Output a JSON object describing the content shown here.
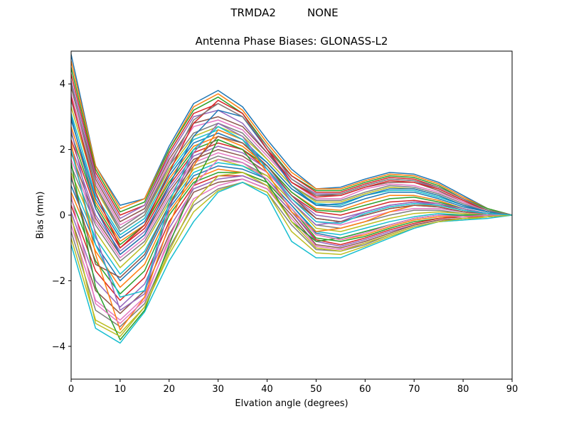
{
  "header": {
    "station": "TRMDA2",
    "radome": "NONE"
  },
  "chart_data": {
    "type": "line",
    "title": "Antenna Phase Biases: GLONASS-L2",
    "xlabel": "Elvation angle (degrees)",
    "ylabel": "Bias (mm)",
    "xlim": [
      0,
      90
    ],
    "ylim": [
      -5,
      5
    ],
    "xticks": [
      0,
      10,
      20,
      30,
      40,
      50,
      60,
      70,
      80,
      90
    ],
    "yticks": [
      -4,
      -2,
      0,
      2,
      4
    ],
    "x": [
      0,
      5,
      10,
      15,
      20,
      25,
      30,
      35,
      40,
      45,
      50,
      55,
      60,
      65,
      70,
      75,
      80,
      85,
      90
    ],
    "grid": false,
    "legend": "none",
    "colors": [
      "#1f77b4",
      "#ff7f0e",
      "#2ca02c",
      "#d62728",
      "#9467bd",
      "#8c564b",
      "#e377c2",
      "#7f7f7f",
      "#bcbd22",
      "#17becf"
    ],
    "series": [
      {
        "values": [
          4.9,
          1.5,
          0.3,
          0.5,
          2.1,
          3.4,
          3.8,
          3.3,
          2.3,
          1.4,
          0.8,
          0.85,
          1.1,
          1.3,
          1.25,
          1.0,
          0.6,
          0.2,
          0
        ]
      },
      {
        "values": [
          4.7,
          1.5,
          0.2,
          0.5,
          2.0,
          3.3,
          3.7,
          3.2,
          2.2,
          1.3,
          0.8,
          0.8,
          1.05,
          1.25,
          1.2,
          0.95,
          0.55,
          0.2,
          0
        ]
      },
      {
        "values": [
          4.5,
          1.4,
          0.1,
          0.4,
          2.0,
          3.2,
          3.6,
          3.1,
          2.1,
          1.2,
          0.75,
          0.75,
          1.0,
          1.2,
          1.15,
          0.9,
          0.5,
          0.2,
          0
        ]
      },
      {
        "values": [
          4.3,
          1.3,
          0.0,
          0.3,
          1.9,
          3.1,
          3.4,
          3.0,
          2.0,
          1.2,
          0.7,
          0.7,
          0.95,
          1.15,
          1.1,
          0.85,
          0.5,
          0.15,
          0
        ]
      },
      {
        "values": [
          4.1,
          1.2,
          -0.1,
          0.3,
          1.8,
          3.0,
          3.2,
          2.8,
          1.9,
          1.1,
          0.65,
          0.65,
          0.9,
          1.1,
          1.05,
          0.8,
          0.45,
          0.15,
          0
        ]
      },
      {
        "values": [
          3.9,
          1.1,
          -0.2,
          0.2,
          1.7,
          2.8,
          3.0,
          2.7,
          1.9,
          1.0,
          0.6,
          0.6,
          0.85,
          1.0,
          1.0,
          0.75,
          0.4,
          0.15,
          0
        ]
      },
      {
        "values": [
          3.7,
          1.0,
          -0.3,
          0.1,
          1.6,
          2.7,
          2.9,
          2.6,
          1.8,
          1.0,
          0.5,
          0.5,
          0.8,
          0.95,
          0.9,
          0.7,
          0.4,
          0.1,
          0
        ]
      },
      {
        "values": [
          3.5,
          0.9,
          -0.4,
          0.1,
          1.5,
          2.5,
          2.8,
          2.5,
          1.7,
          0.9,
          0.45,
          0.45,
          0.7,
          0.9,
          0.85,
          0.65,
          0.35,
          0.1,
          0
        ]
      },
      {
        "values": [
          3.3,
          0.8,
          -0.5,
          0.0,
          1.4,
          2.4,
          2.7,
          2.4,
          1.7,
          0.9,
          0.4,
          0.4,
          0.65,
          0.85,
          0.8,
          0.6,
          0.3,
          0.1,
          0
        ]
      },
      {
        "values": [
          3.1,
          0.6,
          -0.6,
          -0.1,
          1.3,
          2.3,
          2.6,
          2.3,
          1.6,
          0.8,
          0.35,
          0.3,
          0.6,
          0.75,
          0.75,
          0.55,
          0.3,
          0.1,
          0
        ]
      },
      {
        "values": [
          2.9,
          0.5,
          -0.7,
          -0.2,
          1.2,
          2.2,
          2.5,
          2.2,
          1.6,
          0.8,
          0.3,
          0.25,
          0.5,
          0.7,
          0.7,
          0.5,
          0.25,
          0.1,
          0
        ]
      },
      {
        "values": [
          2.7,
          0.4,
          -0.8,
          -0.3,
          1.1,
          2.1,
          2.4,
          2.1,
          1.5,
          0.7,
          0.2,
          0.15,
          0.4,
          0.6,
          0.6,
          0.45,
          0.2,
          0.05,
          0
        ]
      },
      {
        "values": [
          2.5,
          0.3,
          -0.9,
          -0.3,
          1.0,
          2.0,
          2.3,
          2.0,
          1.5,
          0.7,
          0.15,
          0.1,
          0.3,
          0.5,
          0.55,
          0.4,
          0.2,
          0.05,
          0
        ]
      },
      {
        "values": [
          2.3,
          0.2,
          -1.0,
          -0.4,
          0.9,
          1.9,
          2.2,
          2.0,
          1.4,
          0.6,
          0.1,
          0.0,
          0.2,
          0.4,
          0.45,
          0.35,
          0.15,
          0.05,
          0
        ]
      },
      {
        "values": [
          2.1,
          0.0,
          -1.1,
          -0.5,
          0.8,
          1.8,
          2.1,
          1.9,
          1.4,
          0.6,
          0.0,
          -0.1,
          0.1,
          0.3,
          0.4,
          0.3,
          0.15,
          0.05,
          0
        ]
      },
      {
        "values": [
          1.9,
          -0.1,
          -1.2,
          -0.6,
          0.7,
          1.7,
          2.0,
          1.8,
          1.3,
          0.5,
          -0.1,
          -0.2,
          0.0,
          0.2,
          0.3,
          0.25,
          0.1,
          0.0,
          0
        ]
      },
      {
        "values": [
          1.7,
          -0.2,
          -1.3,
          -0.7,
          0.6,
          1.6,
          1.9,
          1.7,
          1.3,
          0.5,
          -0.2,
          -0.3,
          -0.1,
          0.1,
          0.2,
          0.2,
          0.1,
          0.0,
          0
        ]
      },
      {
        "values": [
          1.5,
          -0.3,
          -1.4,
          -0.8,
          0.5,
          1.5,
          1.8,
          1.6,
          1.2,
          0.4,
          -0.3,
          -0.4,
          -0.2,
          0.0,
          0.15,
          0.15,
          0.05,
          0.0,
          0
        ]
      },
      {
        "values": [
          1.3,
          -0.5,
          -1.6,
          -0.9,
          0.4,
          1.4,
          1.7,
          1.5,
          1.2,
          0.4,
          -0.4,
          -0.5,
          -0.3,
          -0.1,
          0.05,
          0.1,
          0.05,
          0.0,
          0
        ]
      },
      {
        "values": [
          1.1,
          -0.7,
          -1.8,
          -1.1,
          0.3,
          1.3,
          1.6,
          1.5,
          1.1,
          0.3,
          -0.5,
          -0.6,
          -0.4,
          -0.2,
          -0.05,
          0.05,
          0.0,
          0.0,
          0
        ]
      },
      {
        "values": [
          0.9,
          -0.9,
          -2.0,
          -1.3,
          0.2,
          1.2,
          1.5,
          1.4,
          1.1,
          0.3,
          -0.55,
          -0.7,
          -0.5,
          -0.3,
          -0.1,
          0.0,
          0.0,
          0.0,
          0
        ]
      },
      {
        "values": [
          0.7,
          -1.1,
          -2.2,
          -1.5,
          0.1,
          1.1,
          1.4,
          1.3,
          1.0,
          0.2,
          -0.6,
          -0.75,
          -0.6,
          -0.35,
          -0.15,
          -0.05,
          -0.05,
          0.0,
          0
        ]
      },
      {
        "values": [
          0.5,
          -1.4,
          -2.4,
          -1.7,
          0.0,
          1.0,
          1.3,
          1.3,
          1.0,
          0.2,
          -0.7,
          -0.8,
          -0.65,
          -0.4,
          -0.2,
          -0.1,
          -0.05,
          -0.05,
          0
        ]
      },
      {
        "values": [
          0.3,
          -1.7,
          -2.6,
          -1.9,
          -0.2,
          0.9,
          1.2,
          1.2,
          0.9,
          0.1,
          -0.75,
          -0.9,
          -0.7,
          -0.45,
          -0.25,
          -0.1,
          -0.05,
          -0.05,
          0
        ]
      },
      {
        "values": [
          0.1,
          -2.0,
          -2.8,
          -2.1,
          -0.4,
          0.8,
          1.1,
          1.2,
          0.9,
          0.1,
          -0.8,
          -0.95,
          -0.75,
          -0.5,
          -0.3,
          -0.15,
          -0.1,
          -0.05,
          0
        ]
      },
      {
        "values": [
          -0.1,
          -2.3,
          -3.0,
          -2.3,
          -0.6,
          0.7,
          1.0,
          1.1,
          0.8,
          0.0,
          -0.9,
          -1.0,
          -0.8,
          -0.55,
          -0.3,
          -0.15,
          -0.1,
          -0.05,
          0
        ]
      },
      {
        "values": [
          -0.3,
          -2.6,
          -3.2,
          -2.5,
          -0.8,
          0.5,
          0.9,
          1.1,
          0.8,
          -0.1,
          -0.95,
          -1.05,
          -0.85,
          -0.6,
          -0.35,
          -0.2,
          -0.1,
          -0.05,
          0
        ]
      },
      {
        "values": [
          -0.5,
          -2.9,
          -3.4,
          -2.7,
          -1.0,
          0.3,
          0.8,
          1.0,
          0.7,
          -0.3,
          -1.05,
          -1.1,
          -0.9,
          -0.6,
          -0.35,
          -0.2,
          -0.1,
          -0.05,
          0
        ]
      },
      {
        "values": [
          -0.7,
          -3.2,
          -3.6,
          -2.8,
          -1.2,
          0.1,
          0.75,
          1.0,
          0.7,
          -0.5,
          -1.15,
          -1.2,
          -0.95,
          -0.65,
          -0.4,
          -0.2,
          -0.15,
          -0.05,
          0
        ]
      },
      {
        "values": [
          -0.9,
          -3.45,
          -3.9,
          -2.95,
          -1.4,
          -0.2,
          0.7,
          1.0,
          0.6,
          -0.8,
          -1.3,
          -1.3,
          -1.0,
          -0.7,
          -0.4,
          -0.2,
          -0.15,
          -0.1,
          0
        ]
      },
      {
        "values": [
          3.0,
          0.2,
          -1.2,
          -0.6,
          0.9,
          2.4,
          3.2,
          3.0,
          2.0,
          0.9,
          0.3,
          0.35,
          0.6,
          0.8,
          0.8,
          0.6,
          0.3,
          0.1,
          0
        ]
      },
      {
        "values": [
          2.2,
          -1.2,
          -3.5,
          -2.5,
          -0.3,
          1.5,
          2.6,
          2.3,
          1.3,
          0.1,
          -0.5,
          -0.4,
          -0.2,
          0.1,
          0.3,
          0.3,
          0.15,
          0.05,
          0
        ]
      },
      {
        "values": [
          1.6,
          -2.2,
          -3.8,
          -2.9,
          -0.9,
          0.9,
          2.3,
          2.0,
          1.0,
          -0.2,
          -0.8,
          -0.7,
          -0.5,
          -0.3,
          -0.1,
          0.0,
          0.0,
          0.0,
          0
        ]
      },
      {
        "values": [
          3.6,
          0.7,
          -1.0,
          -0.3,
          1.3,
          2.8,
          3.5,
          3.1,
          2.0,
          1.0,
          0.55,
          0.6,
          0.85,
          1.05,
          1.0,
          0.8,
          0.45,
          0.15,
          0
        ]
      },
      {
        "values": [
          2.6,
          -0.6,
          -2.9,
          -2.4,
          0.2,
          1.9,
          2.8,
          2.4,
          1.4,
          0.4,
          -0.3,
          -0.2,
          0.1,
          0.3,
          0.4,
          0.35,
          0.2,
          0.05,
          0
        ]
      },
      {
        "values": [
          1.2,
          -1.5,
          -1.9,
          -1.2,
          0.3,
          1.6,
          2.4,
          2.2,
          1.5,
          0.6,
          -0.1,
          -0.2,
          0.0,
          0.2,
          0.3,
          0.25,
          0.1,
          0.05,
          0
        ]
      },
      {
        "values": [
          0.6,
          -2.7,
          -3.3,
          -2.6,
          -0.7,
          0.9,
          1.7,
          1.6,
          1.1,
          0.2,
          -0.6,
          -0.75,
          -0.55,
          -0.3,
          -0.1,
          0.0,
          -0.05,
          0.0,
          0
        ]
      },
      {
        "values": [
          4.0,
          0.9,
          -0.5,
          0.0,
          1.5,
          2.9,
          3.4,
          3.0,
          2.1,
          1.1,
          0.6,
          0.65,
          0.9,
          1.1,
          1.05,
          0.85,
          0.5,
          0.15,
          0
        ]
      },
      {
        "values": [
          0.0,
          -3.3,
          -3.7,
          -2.8,
          -1.1,
          0.4,
          1.2,
          1.3,
          0.9,
          -0.2,
          -1.0,
          -1.1,
          -0.85,
          -0.6,
          -0.35,
          -0.2,
          -0.1,
          -0.05,
          0
        ]
      },
      {
        "values": [
          2.0,
          -0.9,
          -2.5,
          -2.3,
          0.4,
          2.0,
          2.7,
          2.3,
          1.4,
          0.5,
          -0.2,
          -0.25,
          0.05,
          0.25,
          0.35,
          0.3,
          0.15,
          0.05,
          0
        ]
      }
    ]
  }
}
